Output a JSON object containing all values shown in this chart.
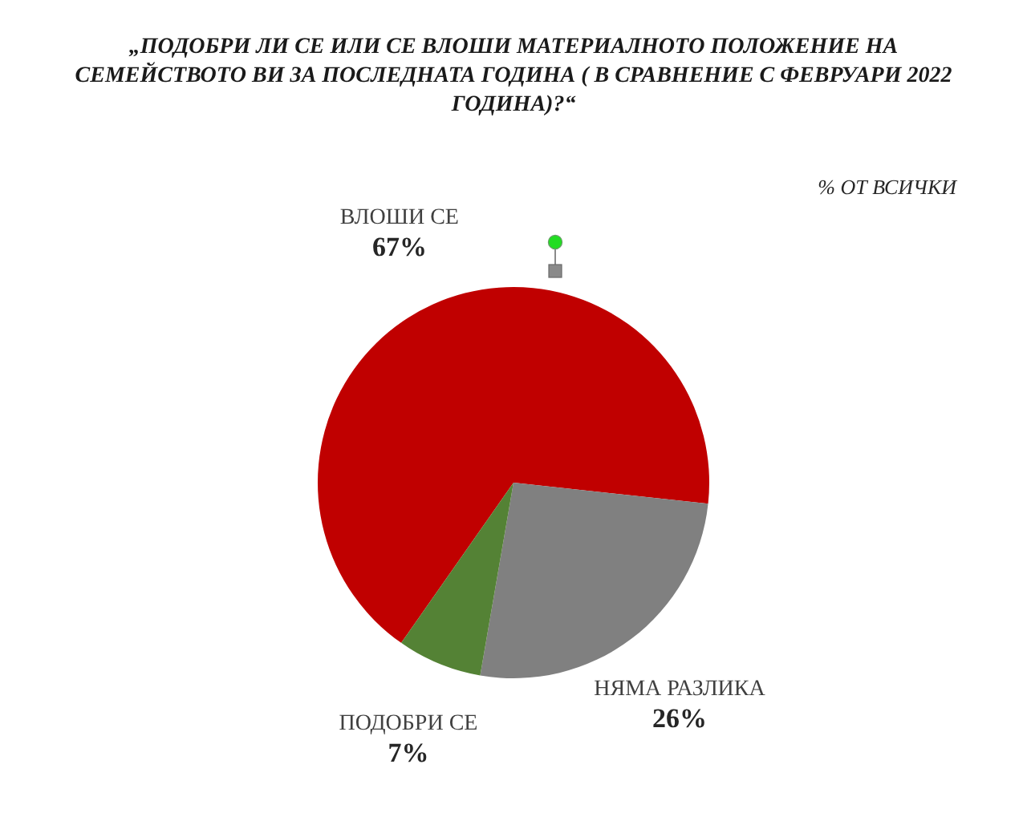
{
  "chart_data": {
    "type": "pie",
    "title": "„ПОДОБРИ ЛИ СЕ ИЛИ СЕ ВЛОШИ МАТЕРИАЛНОТО ПОЛОЖЕНИЕ НА СЕМЕЙСТВОТО ВИ ЗА ПОСЛЕДНАТА ГОДИНА ( В СРАВНЕНИЕ С ФЕВРУАРИ 2022 ГОДИНА)?“",
    "subtitle": "% ОТ ВСИЧКИ",
    "categories": [
      "ВЛОШИ СЕ",
      "НЯМА РАЗЛИКА",
      "ПОДОБРИ СЕ"
    ],
    "values": [
      67,
      26,
      7
    ],
    "colors": [
      "#c00000",
      "#808080",
      "#548235"
    ],
    "value_labels": [
      "67%",
      "26%",
      "7%"
    ]
  }
}
